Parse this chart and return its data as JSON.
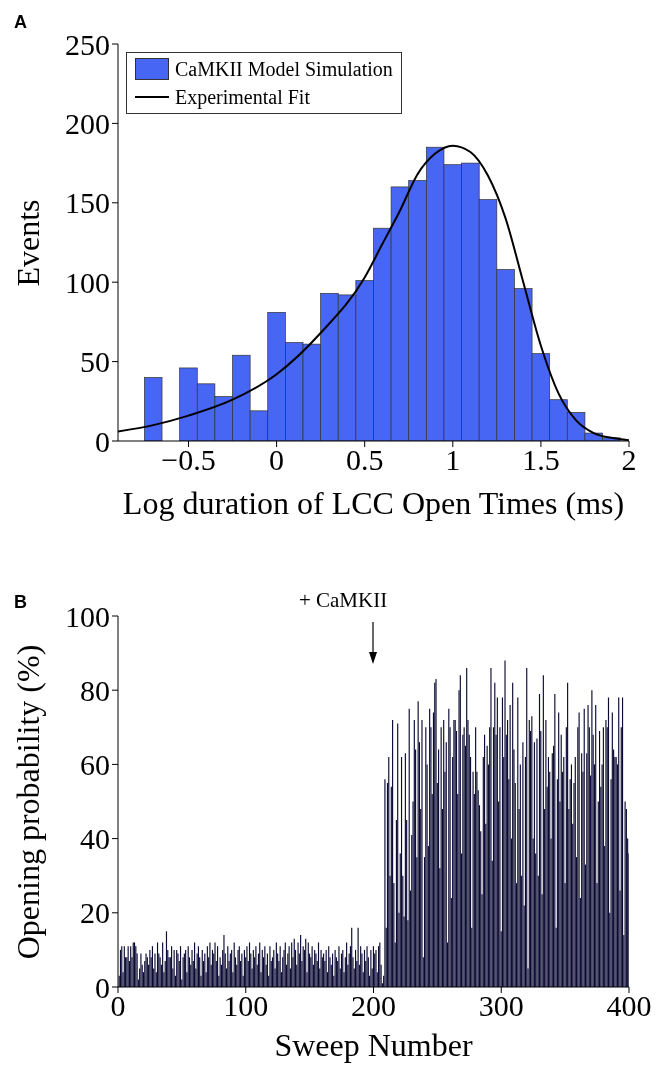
{
  "chart_data": [
    {
      "type": "histogram",
      "title": "A",
      "xlabel": "Log duration of LCC Open Times (ms)",
      "ylabel": "Events",
      "bins": [
        -0.75,
        -0.65,
        -0.55,
        -0.45,
        -0.35,
        -0.25,
        -0.15,
        -0.05,
        0.05,
        0.15,
        0.25,
        0.35,
        0.45,
        0.55,
        0.65,
        0.75,
        0.85,
        0.95,
        1.05,
        1.15,
        1.25,
        1.35,
        1.45,
        1.55,
        1.65,
        1.75,
        1.85,
        1.95
      ],
      "series": [
        {
          "type": "histogram",
          "name": "CaMKII Model Simulation",
          "color": "#4866f4",
          "values": [
            40,
            0,
            46,
            36,
            28,
            54,
            19,
            81,
            62,
            61,
            93,
            92,
            101,
            134,
            160,
            164,
            185,
            174,
            175,
            152,
            108,
            96,
            55,
            26,
            18,
            5,
            2
          ]
        },
        {
          "type": "line",
          "name": "Experimental Fit",
          "color": "#000000",
          "x": [
            -0.9,
            -0.7,
            -0.5,
            -0.25,
            0,
            0.25,
            0.5,
            0.6,
            0.7,
            0.8,
            0.9,
            1,
            1.1,
            1.2,
            1.3,
            1.4,
            1.5,
            1.6,
            1.7,
            1.8,
            1.9,
            2
          ],
          "values": [
            6,
            10,
            16,
            26,
            42,
            68,
            103,
            124,
            145,
            168,
            181,
            186,
            182,
            167,
            140,
            100,
            60,
            30,
            13,
            5,
            2,
            0.5
          ]
        }
      ],
      "xlim": [
        -0.9,
        2
      ],
      "xticks": [
        {
          "value": -0.5,
          "label": "−0.5"
        },
        0,
        0.5,
        1,
        1.5,
        2
      ],
      "ylim": [
        0,
        250
      ],
      "yticks": [
        0,
        50,
        100,
        150,
        200,
        250
      ],
      "legend": "top left"
    },
    {
      "type": "bar",
      "title": "B",
      "xlabel": "Sweep Number",
      "ylabel": "Opening probability (%)",
      "color": "#0b0a33",
      "x": [
        1,
        2,
        3,
        4,
        5,
        6,
        7,
        8,
        9,
        10,
        11,
        12,
        13,
        14,
        15,
        16,
        17,
        18,
        19,
        20,
        21,
        22,
        23,
        24,
        25,
        26,
        27,
        28,
        29,
        30,
        31,
        32,
        33,
        34,
        35,
        36,
        37,
        38,
        39,
        40,
        41,
        42,
        43,
        44,
        45,
        46,
        47,
        48,
        49,
        50,
        51,
        52,
        53,
        54,
        55,
        56,
        57,
        58,
        59,
        60,
        61,
        62,
        63,
        64,
        65,
        66,
        67,
        68,
        69,
        70,
        71,
        72,
        73,
        74,
        75,
        76,
        77,
        78,
        79,
        80,
        81,
        82,
        83,
        84,
        85,
        86,
        87,
        88,
        89,
        90,
        91,
        92,
        93,
        94,
        95,
        96,
        97,
        98,
        99,
        100,
        101,
        102,
        103,
        104,
        105,
        106,
        107,
        108,
        109,
        110,
        111,
        112,
        113,
        114,
        115,
        116,
        117,
        118,
        119,
        120,
        121,
        122,
        123,
        124,
        125,
        126,
        127,
        128,
        129,
        130,
        131,
        132,
        133,
        134,
        135,
        136,
        137,
        138,
        139,
        140,
        141,
        142,
        143,
        144,
        145,
        146,
        147,
        148,
        149,
        150,
        151,
        152,
        153,
        154,
        155,
        156,
        157,
        158,
        159,
        160,
        161,
        162,
        163,
        164,
        165,
        166,
        167,
        168,
        169,
        170,
        171,
        172,
        173,
        174,
        175,
        176,
        177,
        178,
        179,
        180,
        181,
        182,
        183,
        184,
        185,
        186,
        187,
        188,
        189,
        190,
        191,
        192,
        193,
        194,
        195,
        196,
        197,
        198,
        199,
        200,
        201,
        202,
        203,
        204,
        205,
        206,
        207,
        208,
        209,
        210,
        211,
        212,
        213,
        214,
        215,
        216,
        217,
        218,
        219,
        220,
        221,
        222,
        223,
        224,
        225,
        226,
        227,
        228,
        229,
        230,
        231,
        232,
        233,
        234,
        235,
        236,
        237,
        238,
        239,
        240,
        241,
        242,
        243,
        244,
        245,
        246,
        247,
        248,
        249,
        250,
        251,
        252,
        253,
        254,
        255,
        256,
        257,
        258,
        259,
        260,
        261,
        262,
        263,
        264,
        265,
        266,
        267,
        268,
        269,
        270,
        271,
        272,
        273,
        274,
        275,
        276,
        277,
        278,
        279,
        280,
        281,
        282,
        283,
        284,
        285,
        286,
        287,
        288,
        289,
        290,
        291,
        292,
        293,
        294,
        295,
        296,
        297,
        298,
        299,
        300,
        301,
        302,
        303,
        304,
        305,
        306,
        307,
        308,
        309,
        310,
        311,
        312,
        313,
        314,
        315,
        316,
        317,
        318,
        319,
        320,
        321,
        322,
        323,
        324,
        325,
        326,
        327,
        328,
        329,
        330,
        331,
        332,
        333,
        334,
        335,
        336,
        337,
        338,
        339,
        340,
        341,
        342,
        343,
        344,
        345,
        346,
        347,
        348,
        349,
        350,
        351,
        352,
        353,
        354,
        355,
        356,
        357,
        358,
        359,
        360,
        361,
        362,
        363,
        364,
        365,
        366,
        367,
        368,
        369,
        370,
        371,
        372,
        373,
        374,
        375,
        376,
        377,
        378,
        379,
        380,
        381,
        382,
        383,
        384,
        385,
        386,
        387,
        388,
        389,
        390,
        391,
        392,
        393,
        394,
        395,
        396,
        397,
        398,
        399,
        400
      ],
      "values": [
        3,
        10,
        11,
        4,
        11,
        8,
        8,
        11,
        7,
        11,
        8,
        12,
        12,
        11,
        9,
        2,
        5,
        9,
        6,
        4,
        7,
        9,
        8,
        6,
        10,
        8,
        11,
        5,
        9,
        4,
        12,
        9,
        8,
        6,
        12,
        4,
        7,
        15,
        10,
        8,
        8,
        11,
        5,
        10,
        3,
        10,
        9,
        7,
        11,
        2,
        8,
        9,
        10,
        4,
        11,
        8,
        6,
        10,
        7,
        12,
        5,
        9,
        11,
        8,
        3,
        10,
        7,
        9,
        4,
        11,
        8,
        12,
        6,
        10,
        9,
        12,
        7,
        11,
        3,
        8,
        6,
        10,
        14,
        9,
        5,
        11,
        7,
        9,
        10,
        4,
        12,
        8,
        6,
        10,
        11,
        7,
        9,
        3,
        10,
        8,
        11,
        7,
        12,
        9,
        5,
        10,
        8,
        11,
        6,
        9,
        12,
        4,
        10,
        8,
        11,
        6,
        9,
        3,
        11,
        7,
        8,
        10,
        5,
        12,
        9,
        7,
        11,
        4,
        8,
        10,
        12,
        6,
        9,
        11,
        5,
        12,
        8,
        13,
        10,
        6,
        12,
        9,
        14,
        7,
        11,
        10,
        13,
        4,
        12,
        9,
        8,
        11,
        6,
        10,
        9,
        7,
        12,
        5,
        10,
        8,
        9,
        7,
        10,
        4,
        11,
        8,
        6,
        9,
        3,
        10,
        8,
        7,
        11,
        5,
        9,
        10,
        4,
        8,
        12,
        6,
        9,
        11,
        16,
        8,
        5,
        10,
        7,
        16,
        6,
        11,
        9,
        4,
        10,
        7,
        11,
        8,
        3,
        10,
        5,
        11,
        9,
        10,
        4,
        11,
        12,
        6,
        1,
        3,
        56,
        16,
        55,
        62,
        30,
        54,
        72,
        28,
        12,
        45,
        71,
        20,
        36,
        62,
        30,
        19,
        63,
        45,
        18,
        75,
        26,
        41,
        50,
        72,
        64,
        35,
        77,
        66,
        48,
        72,
        8,
        35,
        70,
        60,
        38,
        75,
        70,
        52,
        74,
        82,
        83,
        55,
        64,
        32,
        70,
        48,
        72,
        58,
        66,
        12,
        75,
        70,
        24,
        62,
        72,
        72,
        69,
        52,
        80,
        84,
        36,
        68,
        70,
        65,
        86,
        72,
        68,
        62,
        16,
        58,
        52,
        70,
        58,
        53,
        49,
        42,
        25,
        62,
        68,
        44,
        65,
        60,
        70,
        86,
        34,
        70,
        82,
        68,
        78,
        50,
        70,
        15,
        78,
        62,
        88,
        68,
        72,
        56,
        76,
        40,
        82,
        64,
        55,
        28,
        78,
        48,
        60,
        30,
        66,
        22,
        62,
        86,
        5,
        72,
        69,
        73,
        40,
        66,
        36,
        67,
        30,
        79,
        69,
        25,
        84,
        48,
        72,
        54,
        62,
        58,
        40,
        63,
        65,
        79,
        16,
        56,
        74,
        50,
        68,
        58,
        62,
        28,
        70,
        82,
        48,
        56,
        60,
        44,
        55,
        62,
        35,
        70,
        74,
        24,
        63,
        58,
        75,
        33,
        63,
        76,
        70,
        57,
        80,
        68,
        60,
        76,
        28,
        50,
        69,
        54,
        60,
        70,
        38,
        72,
        70,
        78,
        20,
        56,
        74,
        64,
        62,
        62,
        60,
        78,
        26,
        70,
        78,
        14,
        50,
        48,
        40,
        36
      ],
      "xlim": [
        0,
        400
      ],
      "xticks": [
        0,
        100,
        200,
        300,
        400
      ],
      "ylim": [
        0,
        100
      ],
      "yticks": [
        0,
        20,
        40,
        60,
        80,
        100
      ],
      "annotations": [
        "+ CaMKII"
      ]
    }
  ]
}
